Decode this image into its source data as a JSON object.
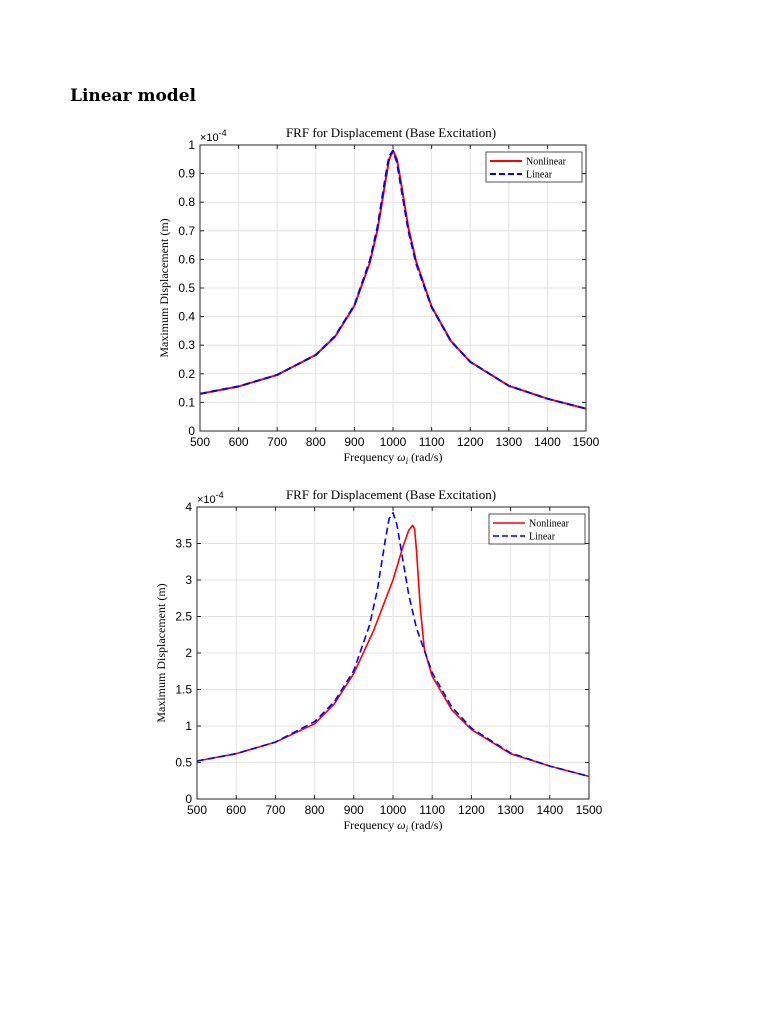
{
  "page": {
    "heading": "Linear model"
  },
  "chart_data": [
    {
      "type": "line",
      "title": "FRF for Displacement (Base Excitation)",
      "xlabel": "Frequency ω_i (rad/s)",
      "xlabel_main": "Frequency ",
      "xlabel_symbol": "ω",
      "xlabel_sub": "i",
      "xlabel_unit": " (rad/s)",
      "ylabel": "Maximum Displacement (m)",
      "y_multiplier": "×10",
      "y_exponent": "-4",
      "xlim": [
        500,
        1500
      ],
      "ylim": [
        0,
        1
      ],
      "xticks": [
        500,
        600,
        700,
        800,
        900,
        1000,
        1100,
        1200,
        1300,
        1400,
        1500
      ],
      "yticks": [
        0,
        0.1,
        0.2,
        0.3,
        0.4,
        0.5,
        0.6,
        0.7,
        0.8,
        0.9,
        1
      ],
      "ytick_labels": [
        "0",
        "0.1",
        "0.2",
        "0.3",
        "0.4",
        "0.5",
        "0.6",
        "0.7",
        "0.8",
        "0.9",
        "1"
      ],
      "grid": true,
      "legend_position": "top-right",
      "series": [
        {
          "name": "Nonlinear",
          "color": "#ff0000",
          "dash": "solid",
          "x": [
            500,
            600,
            700,
            800,
            850,
            900,
            940,
            960,
            980,
            990,
            1000,
            1010,
            1020,
            1040,
            1060,
            1100,
            1150,
            1200,
            1300,
            1400,
            1500
          ],
          "y": [
            0.13,
            0.156,
            0.196,
            0.266,
            0.33,
            0.438,
            0.588,
            0.705,
            0.87,
            0.95,
            0.98,
            0.95,
            0.875,
            0.71,
            0.592,
            0.435,
            0.315,
            0.242,
            0.158,
            0.113,
            0.078
          ]
        },
        {
          "name": "Linear",
          "color": "#0000ff",
          "dash": "dashed",
          "x": [
            500,
            600,
            700,
            800,
            850,
            900,
            940,
            960,
            980,
            990,
            1000,
            1010,
            1020,
            1040,
            1060,
            1100,
            1150,
            1200,
            1300,
            1400,
            1500
          ],
          "y": [
            0.13,
            0.156,
            0.196,
            0.266,
            0.332,
            0.44,
            0.595,
            0.715,
            0.885,
            0.96,
            0.98,
            0.94,
            0.86,
            0.7,
            0.585,
            0.433,
            0.314,
            0.242,
            0.158,
            0.113,
            0.078
          ]
        }
      ]
    },
    {
      "type": "line",
      "title": "FRF for Displacement (Base Excitation)",
      "xlabel": "Frequency ω_i (rad/s)",
      "xlabel_main": "Frequency ",
      "xlabel_symbol": "ω",
      "xlabel_sub": "i",
      "xlabel_unit": " (rad/s)",
      "ylabel": "Maximum Displacement (m)",
      "y_multiplier": "×10",
      "y_exponent": "-4",
      "xlim": [
        500,
        1500
      ],
      "ylim": [
        0,
        4
      ],
      "xticks": [
        500,
        600,
        700,
        800,
        900,
        1000,
        1100,
        1200,
        1300,
        1400,
        1500
      ],
      "yticks": [
        0,
        0.5,
        1,
        1.5,
        2,
        2.5,
        3,
        3.5,
        4
      ],
      "ytick_labels": [
        "0",
        "0.5",
        "1",
        "1.5",
        "2",
        "2.5",
        "3",
        "3.5",
        "4"
      ],
      "grid": true,
      "legend_position": "top-right",
      "series": [
        {
          "name": "Nonlinear",
          "color": "#ff0000",
          "dash": "solid",
          "x": [
            500,
            600,
            700,
            800,
            850,
            900,
            950,
            1000,
            1025,
            1040,
            1050,
            1055,
            1060,
            1070,
            1080,
            1100,
            1150,
            1200,
            1300,
            1400,
            1500
          ],
          "y": [
            0.52,
            0.62,
            0.78,
            1.03,
            1.3,
            1.72,
            2.3,
            3.0,
            3.45,
            3.68,
            3.75,
            3.7,
            3.4,
            2.6,
            2.05,
            1.68,
            1.22,
            0.95,
            0.62,
            0.45,
            0.31
          ]
        },
        {
          "name": "Linear",
          "color": "#0000ff",
          "dash": "dashed",
          "x": [
            500,
            600,
            700,
            800,
            850,
            900,
            940,
            960,
            980,
            990,
            1000,
            1010,
            1020,
            1040,
            1060,
            1100,
            1150,
            1200,
            1300,
            1400,
            1500
          ],
          "y": [
            0.52,
            0.62,
            0.78,
            1.06,
            1.33,
            1.76,
            2.38,
            2.86,
            3.54,
            3.84,
            3.92,
            3.76,
            3.44,
            2.8,
            2.34,
            1.73,
            1.26,
            0.97,
            0.63,
            0.45,
            0.31
          ]
        }
      ]
    }
  ]
}
